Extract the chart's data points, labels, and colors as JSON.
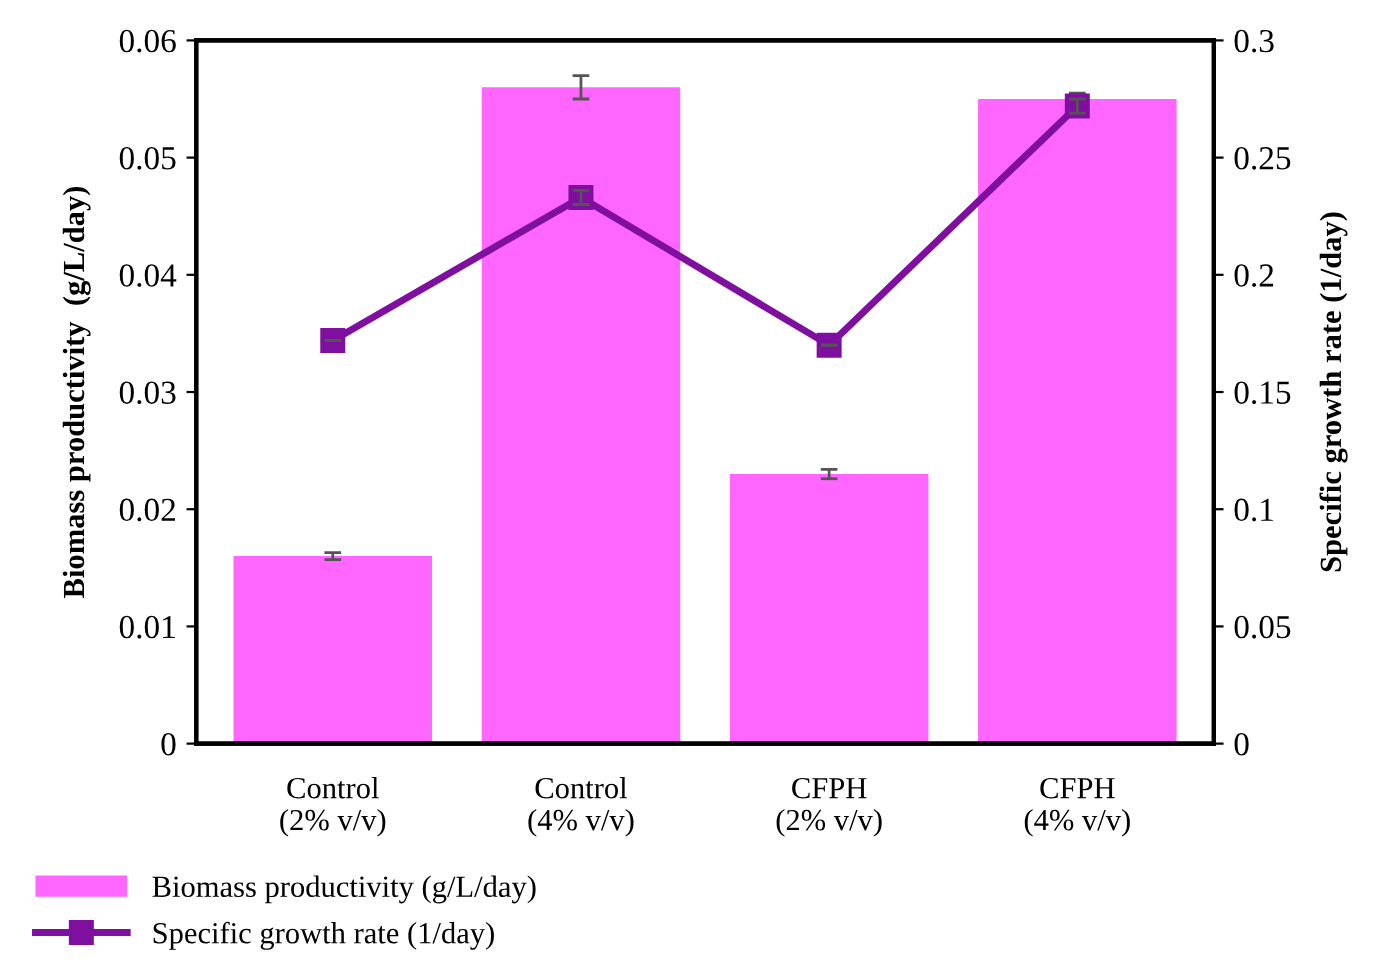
{
  "chart_data": {
    "type": "bar",
    "categories": [
      "Control\n(2% v/v)",
      "Control\n(4% v/v)",
      "CFPH\n(2% v/v)",
      "CFPH\n(4% v/v)"
    ],
    "ylabel": "Biomass productivity  (g/L/day)",
    "y2label": "Specific growth rate (1/day)",
    "ylim": [
      0,
      0.06
    ],
    "yticks": [
      {
        "value": 0,
        "label": "0"
      },
      0.01,
      0.02,
      0.03,
      0.04,
      0.05,
      0.06
    ],
    "y2lim": [
      0,
      0.3
    ],
    "y2ticks": [
      {
        "value": 0,
        "label": "0"
      },
      0.05,
      0.1,
      0.15,
      0.2,
      0.25,
      0.3
    ],
    "legend": "bottom left",
    "grid": false,
    "series": [
      {
        "name": "Biomass productivity (g/L/day)",
        "color": "#ff66ff",
        "values": [
          0.016,
          0.056,
          0.023,
          0.055
        ],
        "errors": [
          0.0003,
          0.001,
          0.0004,
          0.0005
        ]
      },
      {
        "name": "Specific growth rate (1/day)",
        "type": "line",
        "axis": "y2",
        "color": "#7f0f9f",
        "marker": "square",
        "line_style": "solid",
        "values": [
          0.172,
          0.233,
          0.17,
          0.272
        ],
        "errors": [
          null,
          0.003,
          null,
          0.003
        ]
      }
    ]
  }
}
